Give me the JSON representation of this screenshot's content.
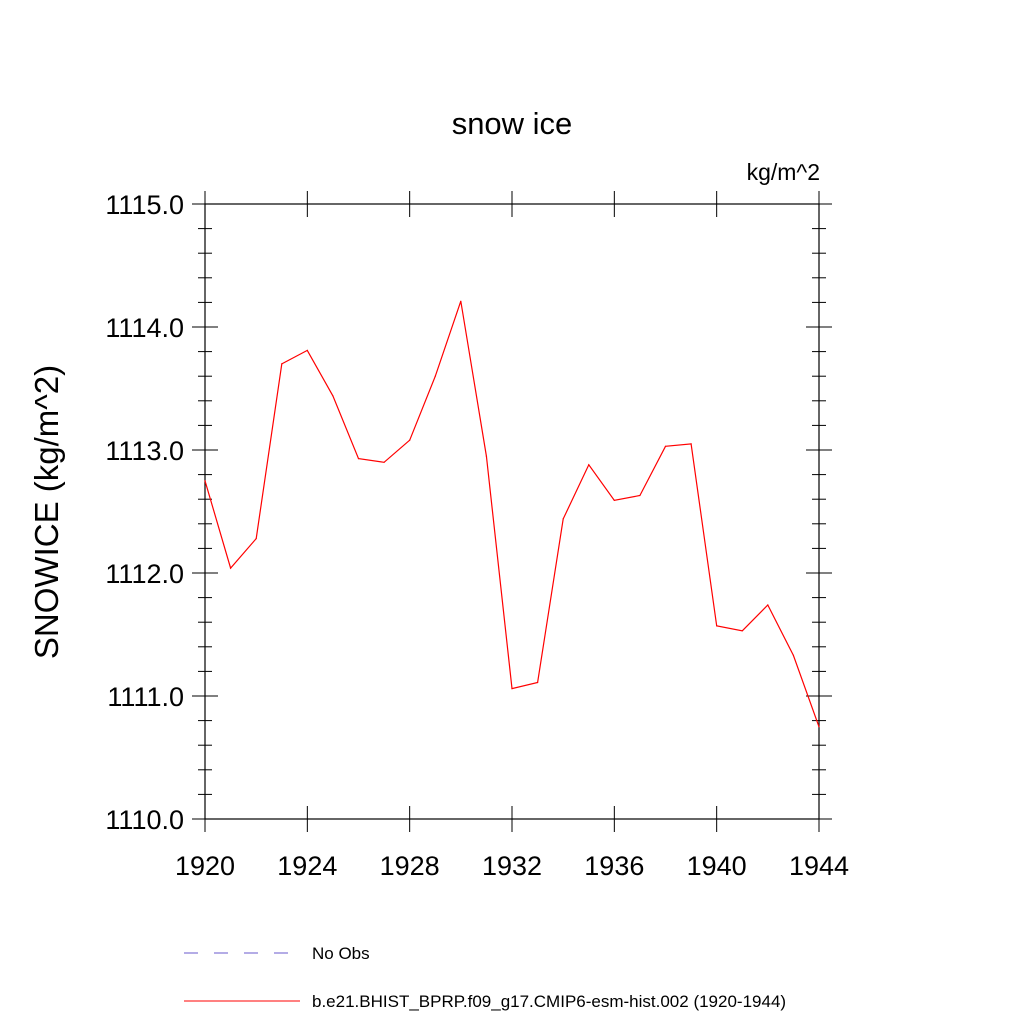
{
  "chart_data": {
    "type": "line",
    "title": "snow ice",
    "units_label": "kg/m^2",
    "ylabel": "SNOWICE  (kg/m^2)",
    "xlabel": "",
    "xlim": [
      1920,
      1944
    ],
    "ylim": [
      1110.0,
      1115.0
    ],
    "x_ticks": [
      1920,
      1924,
      1928,
      1932,
      1936,
      1940,
      1944
    ],
    "x_tick_labels": [
      "1920",
      "1924",
      "1928",
      "1932",
      "1936",
      "1940",
      "1944"
    ],
    "y_ticks": [
      1110.0,
      1111.0,
      1112.0,
      1113.0,
      1114.0,
      1115.0
    ],
    "y_tick_labels": [
      "1110.0",
      "1111.0",
      "1112.0",
      "1113.0",
      "1114.0",
      "1115.0"
    ],
    "grid": false,
    "legend_position": "bottom",
    "series": [
      {
        "name": "b.e21.BHIST_BPRP.f09_g17.CMIP6-esm-hist.002 (1920-1944)",
        "color": "#ff0000",
        "style": "solid",
        "x": [
          1920,
          1921,
          1922,
          1923,
          1924,
          1925,
          1926,
          1927,
          1928,
          1929,
          1930,
          1931,
          1932,
          1933,
          1934,
          1935,
          1936,
          1937,
          1938,
          1939,
          1940,
          1941,
          1942,
          1943,
          1944
        ],
        "y": [
          1112.75,
          1112.04,
          1112.28,
          1113.7,
          1113.81,
          1113.44,
          1112.93,
          1112.9,
          1113.08,
          1113.6,
          1114.21,
          1112.95,
          1111.06,
          1111.11,
          1112.44,
          1112.88,
          1112.59,
          1112.63,
          1113.03,
          1113.05,
          1111.57,
          1111.53,
          1111.74,
          1111.33,
          1110.75
        ]
      }
    ],
    "legend": [
      {
        "label": "No Obs",
        "color": "#6a5acd",
        "style": "dashed"
      },
      {
        "label": "b.e21.BHIST_BPRP.f09_g17.CMIP6-esm-hist.002 (1920-1944)",
        "color": "#ff0000",
        "style": "solid"
      }
    ]
  }
}
